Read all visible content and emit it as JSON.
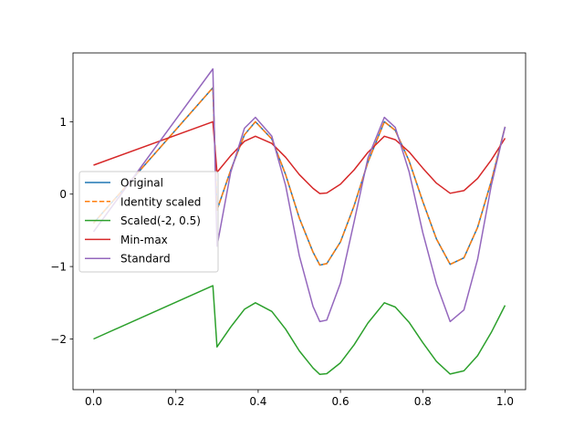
{
  "chart_data": {
    "type": "line",
    "title": "",
    "xlabel": "",
    "ylabel": "",
    "xlim": [
      -0.05,
      1.05
    ],
    "ylim": [
      -2.7,
      1.95
    ],
    "xticks": [
      0.0,
      0.2,
      0.4,
      0.6,
      0.8,
      1.0
    ],
    "xtick_labels": [
      "0.0",
      "0.2",
      "0.4",
      "0.6",
      "0.8",
      "1.0"
    ],
    "yticks": [
      -2,
      -1,
      0,
      1
    ],
    "ytick_labels": [
      "−2",
      "−1",
      "0",
      "1"
    ],
    "grid": false,
    "legend_position": "center-left",
    "x": [
      0.0,
      0.29,
      0.3,
      0.3333,
      0.3667,
      0.3933,
      0.4333,
      0.4667,
      0.5,
      0.5333,
      0.55,
      0.5667,
      0.6,
      0.6333,
      0.6667,
      0.7067,
      0.7333,
      0.7667,
      0.8,
      0.8333,
      0.8667,
      0.9,
      0.9333,
      0.9667,
      1.0
    ],
    "series": [
      {
        "name": "Original",
        "color": "#1f77b4",
        "style": "solid",
        "values": [
          -0.4,
          1.47,
          -0.22,
          0.33,
          0.82,
          1.0,
          0.76,
          0.27,
          -0.33,
          -0.8,
          -0.98,
          -0.96,
          -0.66,
          -0.16,
          0.44,
          1.0,
          0.88,
          0.46,
          -0.1,
          -0.62,
          -0.97,
          -0.88,
          -0.46,
          0.18,
          0.93
        ]
      },
      {
        "name": "Identity scaled",
        "color": "#ff7f0e",
        "style": "dashed",
        "values": [
          -0.4,
          1.47,
          -0.22,
          0.33,
          0.82,
          1.0,
          0.76,
          0.27,
          -0.33,
          -0.8,
          -0.98,
          -0.96,
          -0.66,
          -0.16,
          0.44,
          1.0,
          0.88,
          0.46,
          -0.1,
          -0.62,
          -0.97,
          -0.88,
          -0.46,
          0.18,
          0.93
        ]
      },
      {
        "name": "Scaled(-2, 0.5)",
        "color": "#2ca02c",
        "style": "solid",
        "values": [
          -2.0,
          -1.265,
          -2.11,
          -1.835,
          -1.59,
          -1.5,
          -1.62,
          -1.865,
          -2.165,
          -2.4,
          -2.49,
          -2.48,
          -2.33,
          -2.08,
          -1.78,
          -1.5,
          -1.56,
          -1.77,
          -2.05,
          -2.31,
          -2.485,
          -2.44,
          -2.23,
          -1.91,
          -1.535
        ]
      },
      {
        "name": "Min-max",
        "color": "#d62728",
        "style": "solid",
        "values": [
          0.4,
          1.0,
          0.3,
          0.53,
          0.73,
          0.8,
          0.7,
          0.51,
          0.27,
          0.08,
          0.008,
          0.016,
          0.136,
          0.336,
          0.576,
          0.8,
          0.752,
          0.584,
          0.36,
          0.152,
          0.012,
          0.048,
          0.216,
          0.472,
          0.772
        ]
      },
      {
        "name": "Standard",
        "color": "#9467bd",
        "style": "solid",
        "values": [
          -0.52,
          1.73,
          -0.72,
          0.3,
          0.91,
          1.06,
          0.8,
          0.12,
          -0.85,
          -1.55,
          -1.76,
          -1.74,
          -1.23,
          -0.38,
          0.5,
          1.06,
          0.92,
          0.31,
          -0.53,
          -1.24,
          -1.76,
          -1.6,
          -0.9,
          0.12,
          0.93
        ]
      }
    ]
  }
}
